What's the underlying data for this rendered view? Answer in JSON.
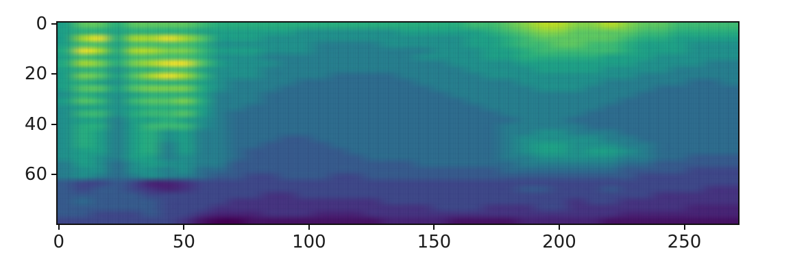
{
  "figure": {
    "background": "#ffffff",
    "spine_color": "#101010",
    "tick_color": "#101010",
    "tick_label_color": "#1c1c1c"
  },
  "chart_data": {
    "type": "heatmap",
    "title": "",
    "xlabel": "",
    "ylabel": "",
    "legend": null,
    "grid": false,
    "origin": "upper",
    "x_ticks": [
      0,
      50,
      100,
      150,
      200,
      250
    ],
    "x_tick_labels": [
      "0",
      "50",
      "100",
      "150",
      "200",
      "250"
    ],
    "y_ticks": [
      0,
      20,
      40,
      60
    ],
    "y_tick_labels": [
      "0",
      "20",
      "40",
      "60"
    ],
    "x_extent": [
      -0.5,
      271.5
    ],
    "y_extent": [
      -0.5,
      79.5
    ],
    "n_cols": 272,
    "n_rows": 80,
    "colormap_name": "viridis",
    "colormap": [
      "#440154",
      "#471365",
      "#482475",
      "#463480",
      "#3f4889",
      "#375b8d",
      "#2e6d8e",
      "#277f8e",
      "#21918c",
      "#1fa187",
      "#29af7f",
      "#3fbc73",
      "#5ec962",
      "#85d54a",
      "#b8de29",
      "#fde725"
    ],
    "values_encoding": "each string is one row (top to bottom); each hex digit 0-15 indexes into colormap; 40x32 downsample of the displayed 272x80 image",
    "values": [
      "9ccaccccbaaaaaaaaaaaaaaabbcdeeddedccbbbb",
      "9aa9aaaa99999988888899999abcddccccbbaaaa",
      "9efaeefec99988888888888899abcccccbaa9999",
      "9bb9bbbba888888777788888 99abbccbba99988",
      "afeaeeddb99988877777778889 9abbbbba999888",
      "9ba9bbbba888777777777888899aaaaa9998888",
      "aedadeffc988877777777778888999 9999888877",
      "9aa8aabb988877777777777788889 99988887777",
      "9dc9cefeb8887777666677777888888888777777",
      "9a98aaaa9877776666666777777888 8877777667",
      "9cc9cddda877766666666677777788 8777766666",
      "8a989aaa977766666666666777777 77777666666",
      "9cb8bccda77766666666666677777 77776666666",
      "89989aaa977666666666666667777 77766666666",
      "8bb8abbc976666666666666666777 77666666666",
      "899799a98766666666666666666777 6666666666",
      "8aa79bbb876666666666666666777 77666666666",
      "8a979a89776666666666666666778 87776666666",
      "8a979a897766655666666666667888 8877666666",
      "8a979a797766555566666666667899 8887766666",
      "89979a797765555556666666667899 8998766666",
      "89879978776555555566666666778 88887766555",
      "798689887755555555555666666777 7776655555",
      "78868878665555555555555555666 66665555444",
      "78767877655445554455555555555 55555444444",
      "5445422344444444444444444444444444444444",
      "5455432344444444444444444445544454444433",
      "5555544444443344444444444444444444433333",
      "5655554444333333333444444444443443333333",
      "5555554443333333333333444333443333333222",
      "5544454432223332223333333333333332222222",
      "4444444310011111111222211112222211111111"
    ]
  }
}
